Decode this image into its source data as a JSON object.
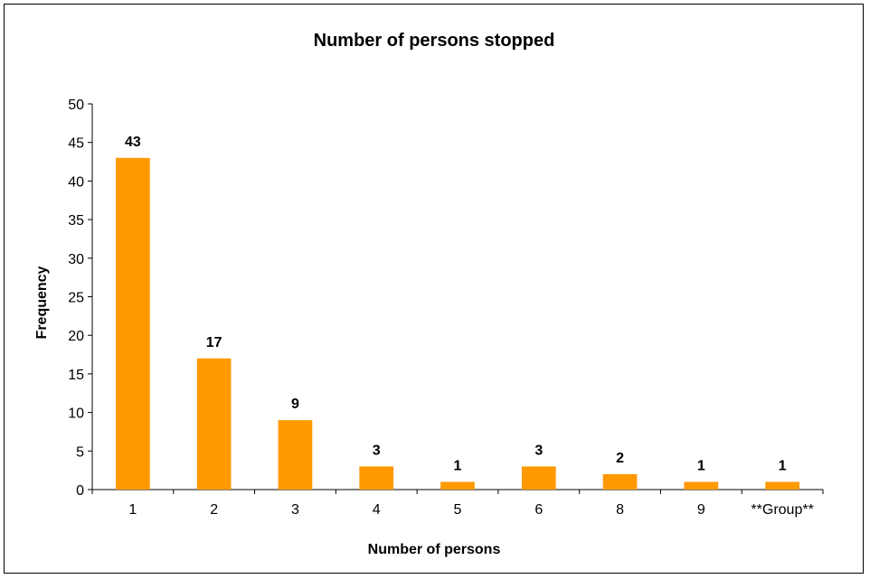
{
  "chart_data": {
    "type": "bar",
    "title": "Number of persons stopped",
    "xlabel": "Number of persons",
    "ylabel": "Frequency",
    "categories": [
      "1",
      "2",
      "3",
      "4",
      "5",
      "6",
      "8",
      "9",
      "**Group**"
    ],
    "values": [
      43,
      17,
      9,
      3,
      1,
      3,
      2,
      1,
      1
    ],
    "data_labels": [
      "43",
      "17",
      "9",
      "3",
      "1",
      "3",
      "2",
      "1",
      "1"
    ],
    "ylim": [
      0,
      50
    ],
    "yticks": [
      "0",
      "5",
      "10",
      "15",
      "20",
      "25",
      "30",
      "35",
      "40",
      "45",
      "50"
    ],
    "bar_color": "#FF9900",
    "grid": false,
    "legend": "none"
  }
}
